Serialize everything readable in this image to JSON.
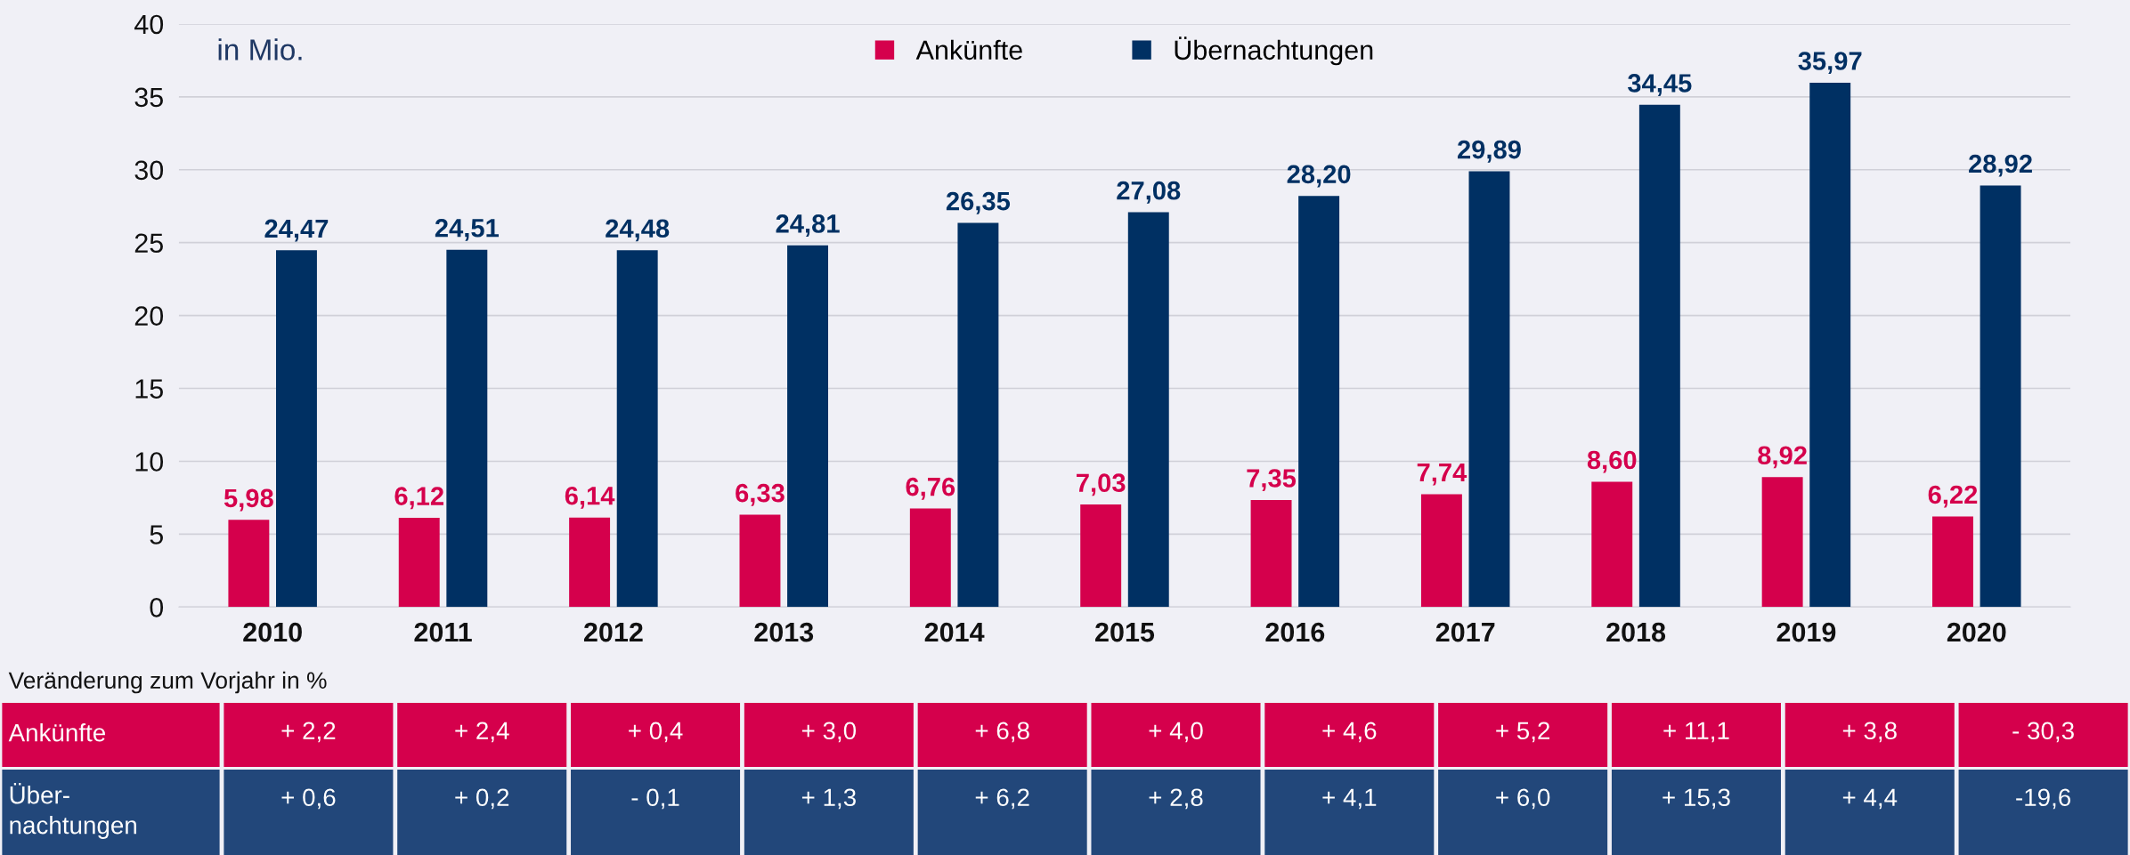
{
  "chart_data": {
    "type": "bar",
    "categories": [
      "2010",
      "2011",
      "2012",
      "2013",
      "2014",
      "2015",
      "2016",
      "2017",
      "2018",
      "2019",
      "2020"
    ],
    "series": [
      {
        "name": "Ankünfte",
        "color": "#d5004c",
        "values": [
          5.98,
          6.12,
          6.14,
          6.33,
          6.76,
          7.03,
          7.35,
          7.74,
          8.6,
          8.92,
          6.22
        ],
        "value_labels": [
          "5,98",
          "6,12",
          "6,14",
          "6,33",
          "6,76",
          "7,03",
          "7,35",
          "7,74",
          "8,60",
          "8,92",
          "6,22"
        ]
      },
      {
        "name": "Übernachtungen",
        "color": "#003063",
        "values": [
          24.47,
          24.51,
          24.48,
          24.81,
          26.35,
          27.08,
          28.2,
          29.89,
          34.45,
          35.97,
          28.92
        ],
        "value_labels": [
          "24,47",
          "24,51",
          "24,48",
          "24,81",
          "26,35",
          "27,08",
          "28,20",
          "29,89",
          "34,45",
          "35,97",
          "28,92"
        ]
      }
    ],
    "ylim": [
      0,
      40
    ],
    "yticks": [
      0,
      5,
      10,
      15,
      20,
      25,
      30,
      35,
      40
    ],
    "grid": "y",
    "legend": "top",
    "annotations": [
      "in Mio.",
      "Veränderung zum Vorjahr in %",
      "Ankünfte",
      "+ 2,2",
      "+ 2,4",
      "+ 0,4",
      "+ 3,0",
      "+ 6,8",
      "+ 4,0",
      "+ 4,6",
      "+ 5,2",
      "+ 11,1",
      "+ 3,8",
      "- 30,3",
      "Über-\nnachtungen",
      "+ 0,6",
      "+ 0,2",
      "- 0,1",
      "+ 1,3",
      "+ 6,2",
      "+ 2,8",
      "+ 4,1",
      "+ 6,0",
      "+ 15,3",
      "+ 4,4",
      "-19,6"
    ]
  }
}
